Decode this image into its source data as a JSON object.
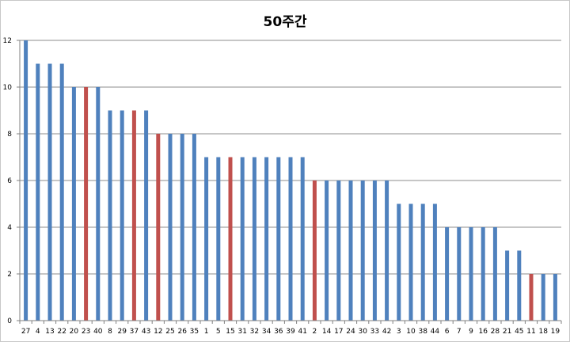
{
  "chart_data": {
    "type": "bar",
    "title": "50주간",
    "xlabel": "",
    "ylabel": "",
    "ylim": [
      0,
      12
    ],
    "yticks": [
      0,
      2,
      4,
      6,
      8,
      10,
      12
    ],
    "grid": true,
    "legend": "none",
    "colors": {
      "default": "#4f81bd",
      "highlight": "#c0504d",
      "grid": "#8c8c8c"
    },
    "categories": [
      "27",
      "4",
      "13",
      "22",
      "20",
      "23",
      "40",
      "8",
      "29",
      "37",
      "43",
      "12",
      "25",
      "26",
      "35",
      "1",
      "5",
      "15",
      "31",
      "32",
      "34",
      "36",
      "39",
      "41",
      "2",
      "14",
      "17",
      "24",
      "30",
      "33",
      "42",
      "3",
      "10",
      "38",
      "44",
      "6",
      "7",
      "9",
      "16",
      "28",
      "21",
      "45",
      "11",
      "18",
      "19"
    ],
    "values": [
      12,
      11,
      11,
      11,
      10,
      10,
      10,
      9,
      9,
      9,
      9,
      8,
      8,
      8,
      8,
      7,
      7,
      7,
      7,
      7,
      7,
      7,
      7,
      7,
      6,
      6,
      6,
      6,
      6,
      6,
      6,
      5,
      5,
      5,
      5,
      4,
      4,
      4,
      4,
      4,
      3,
      3,
      2,
      2,
      2
    ],
    "highlighted": [
      "23",
      "37",
      "12",
      "15",
      "2",
      "11"
    ]
  }
}
